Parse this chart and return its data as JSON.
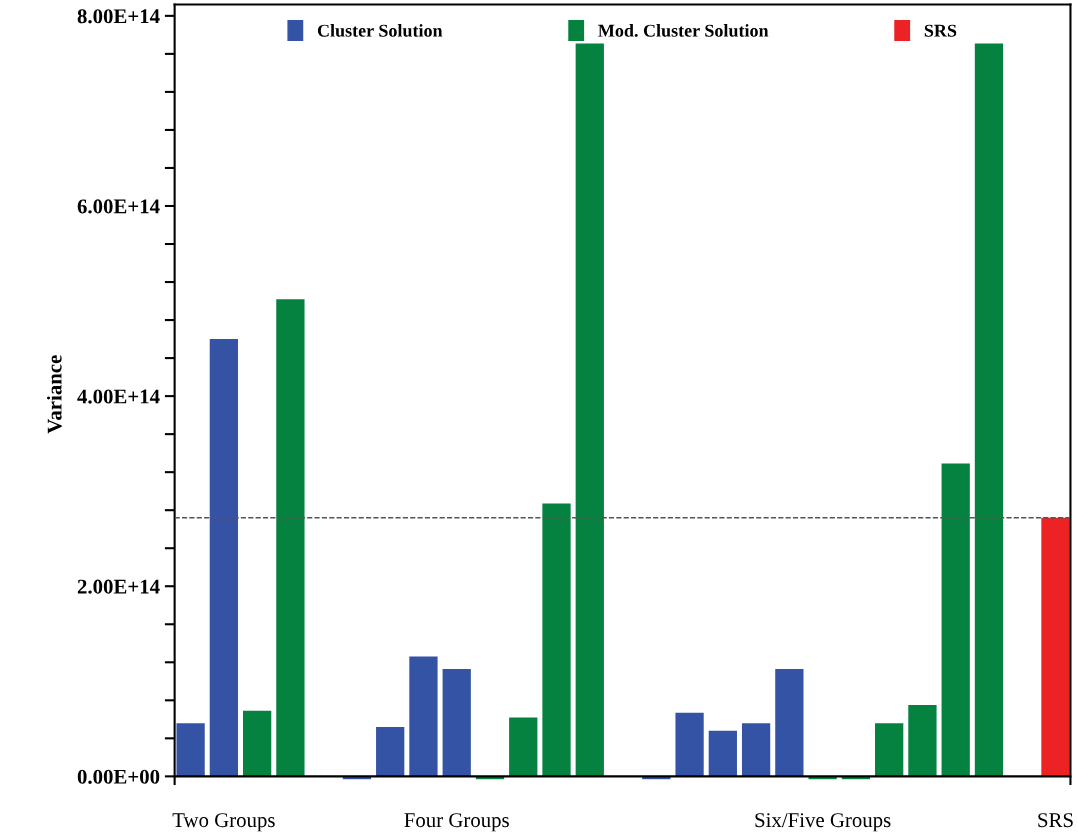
{
  "chart_data": {
    "type": "bar",
    "ylabel": "Variance",
    "categories": [
      null,
      "Two Groups",
      null,
      null,
      null,
      null,
      null,
      null,
      "Four Groups",
      null,
      null,
      null,
      null,
      null,
      null,
      null,
      null,
      null,
      null,
      "Six/Five Groups",
      null,
      null,
      null,
      null,
      null,
      null,
      "SRS"
    ],
    "series": [
      {
        "name": "Cluster Solution",
        "color": "#3553a5",
        "values": [
          56000000000000.0,
          460000000000000.0,
          null,
          null,
          null,
          -3000000000000.0,
          52000000000000.0,
          126000000000000.0,
          113000000000000.0,
          null,
          null,
          null,
          null,
          null,
          -3000000000000.0,
          67000000000000.0,
          48000000000000.0,
          56000000000000.0,
          113000000000000.0,
          null,
          null,
          null,
          null,
          null,
          null,
          null,
          null
        ]
      },
      {
        "name": "Mod. Cluster Solution",
        "color": "#058140",
        "values": [
          null,
          null,
          69000000000000.0,
          502000000000000.0,
          null,
          null,
          null,
          null,
          null,
          -3000000000000.0,
          62000000000000.0,
          287000000000000.0,
          771000000000000.0,
          null,
          null,
          null,
          null,
          null,
          null,
          -3000000000000.0,
          -3000000000000.0,
          56000000000000.0,
          75000000000000.0,
          329000000000000.0,
          771000000000000.0,
          null,
          null
        ]
      },
      {
        "name": "SRS",
        "color": "#ed2224",
        "values": [
          null,
          null,
          null,
          null,
          null,
          null,
          null,
          null,
          null,
          null,
          null,
          null,
          null,
          null,
          null,
          null,
          null,
          null,
          null,
          null,
          null,
          null,
          null,
          null,
          null,
          null,
          272000000000000.0
        ]
      }
    ],
    "ylim": [
      -8000000000000.0,
      812000000000000.0
    ],
    "yticks": [
      {
        "value": 0,
        "label": "0.00E+00"
      },
      {
        "value": 40000000000000.0,
        "label": null
      },
      {
        "value": 80000000000000.0,
        "label": null
      },
      {
        "value": 120000000000000.0,
        "label": null
      },
      {
        "value": 160000000000000.0,
        "label": null
      },
      {
        "value": 200000000000000.0,
        "label": "2.00E+14"
      },
      {
        "value": 240000000000000.0,
        "label": null
      },
      {
        "value": 280000000000000.0,
        "label": null
      },
      {
        "value": 320000000000000.0,
        "label": null
      },
      {
        "value": 360000000000000.0,
        "label": null
      },
      {
        "value": 400000000000000.0,
        "label": "4.00E+14"
      },
      {
        "value": 440000000000000.0,
        "label": null
      },
      {
        "value": 480000000000000.0,
        "label": null
      },
      {
        "value": 520000000000000.0,
        "label": null
      },
      {
        "value": 560000000000000.0,
        "label": null
      },
      {
        "value": 600000000000000.0,
        "label": "6.00E+14"
      },
      {
        "value": 640000000000000.0,
        "label": null
      },
      {
        "value": 680000000000000.0,
        "label": null
      },
      {
        "value": 720000000000000.0,
        "label": null
      },
      {
        "value": 760000000000000.0,
        "label": null
      },
      {
        "value": 800000000000000.0,
        "label": "8.00E+14"
      }
    ],
    "ref_lines": [
      {
        "axis": "y",
        "value": 272000000000000.0,
        "label": null,
        "color": "#555555",
        "line_style": "dashed"
      }
    ],
    "legend": "top",
    "grid": false
  }
}
